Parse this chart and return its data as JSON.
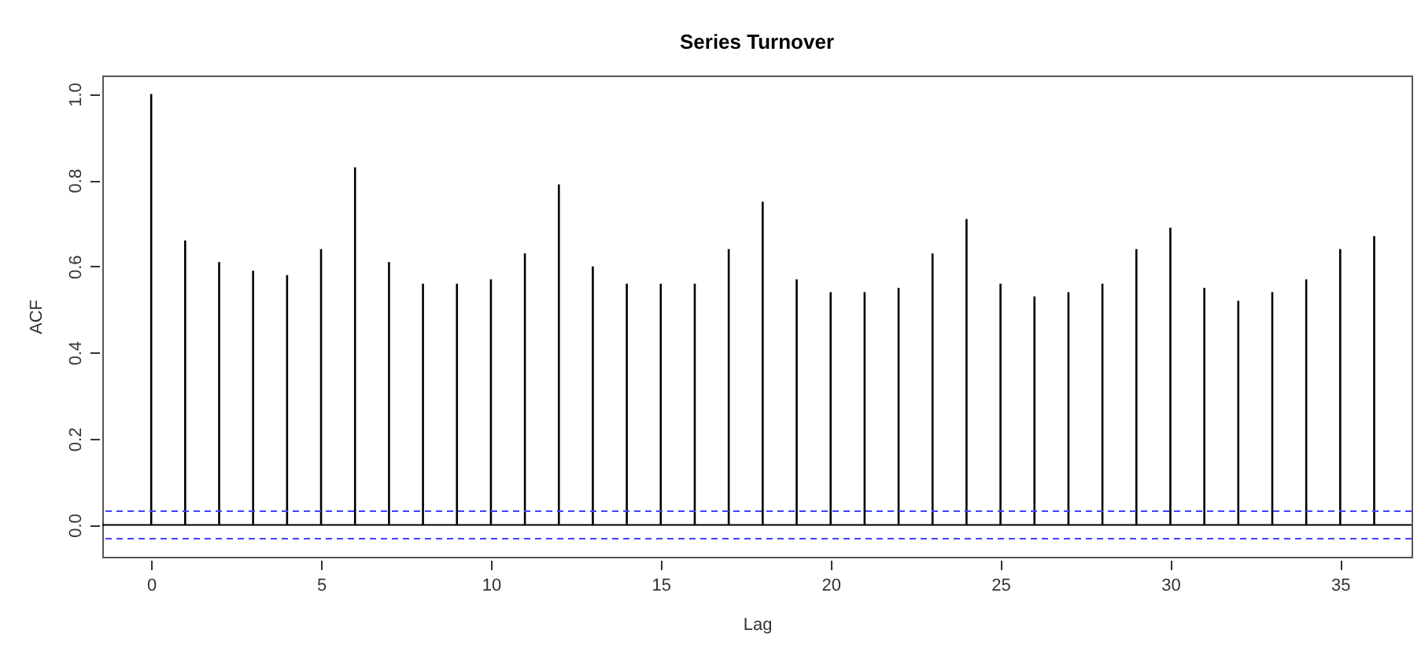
{
  "chart_data": {
    "type": "bar",
    "title": "Series  Turnover",
    "xlabel": "Lag",
    "ylabel": "ACF",
    "color": "#000000",
    "x": [
      0,
      1,
      2,
      3,
      4,
      5,
      6,
      7,
      8,
      9,
      10,
      11,
      12,
      13,
      14,
      15,
      16,
      17,
      18,
      19,
      20,
      21,
      22,
      23,
      24,
      25,
      26,
      27,
      28,
      29,
      30,
      31,
      32,
      33,
      34,
      35,
      36
    ],
    "values": [
      1.0,
      0.66,
      0.61,
      0.59,
      0.58,
      0.64,
      0.83,
      0.61,
      0.56,
      0.56,
      0.57,
      0.63,
      0.79,
      0.6,
      0.56,
      0.56,
      0.56,
      0.64,
      0.75,
      0.57,
      0.54,
      0.54,
      0.55,
      0.63,
      0.71,
      0.56,
      0.53,
      0.54,
      0.56,
      0.64,
      0.69,
      0.55,
      0.52,
      0.54,
      0.57,
      0.64,
      0.67
    ],
    "xlim": [
      -1.44,
      37.1
    ],
    "xticks": [
      0,
      5,
      10,
      15,
      20,
      25,
      30,
      35
    ],
    "ylim": [
      -0.074,
      1.043
    ],
    "yticks": [
      {
        "value": 0,
        "label": "0.0"
      },
      {
        "value": 0.2,
        "label": "0.2"
      },
      {
        "value": 0.4,
        "label": "0.4"
      },
      {
        "value": 0.6,
        "label": "0.6"
      },
      {
        "value": 0.8,
        "label": "0.8"
      },
      {
        "value": 1,
        "label": "1.0"
      }
    ],
    "ref_lines": [
      {
        "axis": "y",
        "value": 0,
        "color": "#000000",
        "line_style": "solid"
      },
      {
        "axis": "y",
        "value": 0.032,
        "color": "#4040ff",
        "line_style": "dashed"
      },
      {
        "axis": "y",
        "value": -0.032,
        "color": "#4040ff",
        "line_style": "dashed"
      }
    ]
  }
}
